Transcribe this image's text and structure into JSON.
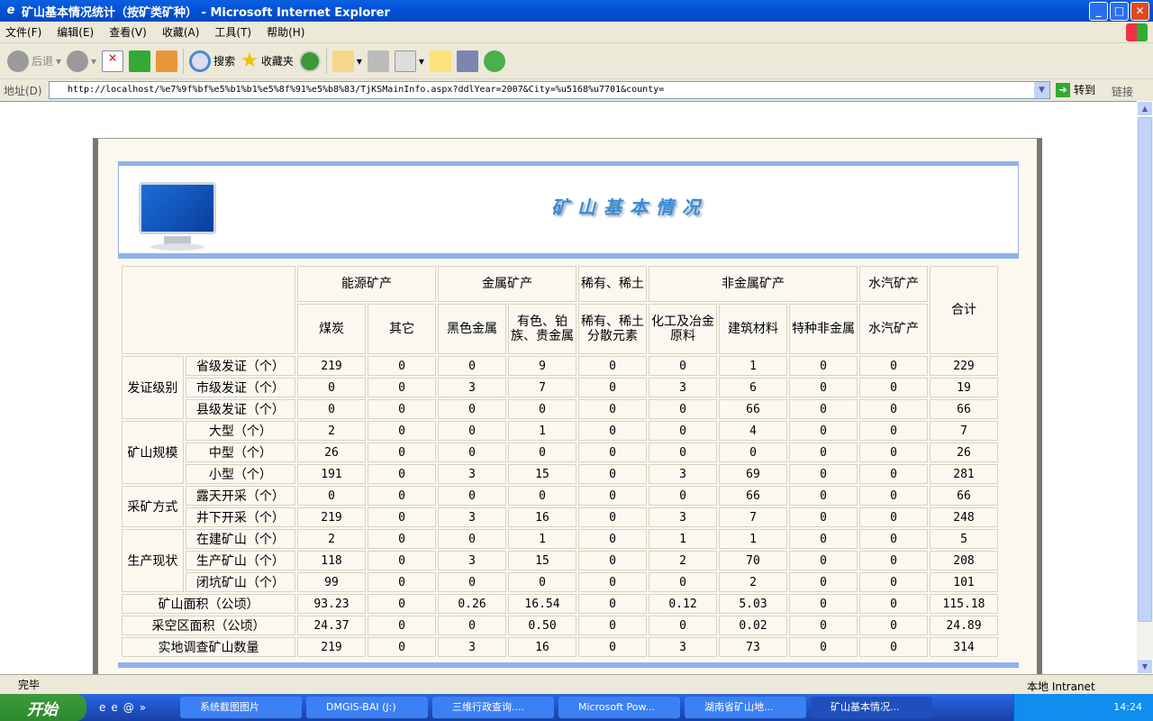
{
  "window": {
    "title": "矿山基本情况统计（按矿类矿种） - Microsoft Internet Explorer",
    "buttons": [
      "_",
      "□",
      "✕"
    ]
  },
  "menu": [
    "文件(F)",
    "编辑(E)",
    "查看(V)",
    "收藏(A)",
    "工具(T)",
    "帮助(H)"
  ],
  "toolbar": {
    "back": "后退",
    "search": "搜索",
    "favorites": "收藏夹"
  },
  "address": {
    "label": "地址(D)",
    "url": "http://localhost/%e7%9f%bf%e5%b1%b1%e5%8f%91%e5%b8%83/TjKSMainInfo.aspx?ddlYear=2007&City=%u5168%u7701&county=",
    "go": "转到",
    "links": "链接"
  },
  "page": {
    "title": "矿山基本情况"
  },
  "table": {
    "groups": [
      {
        "label": "能源矿产",
        "span": 2
      },
      {
        "label": "金属矿产",
        "span": 2
      },
      {
        "label": "稀有、稀土",
        "span": 1
      },
      {
        "label": "非金属矿产",
        "span": 3
      },
      {
        "label": "水汽矿产",
        "span": 1
      }
    ],
    "total_header": "合计",
    "columns": [
      "煤炭",
      "其它",
      "黑色金属",
      "有色、铂族、贵金属",
      "稀有、稀土分散元素",
      "化工及冶金原料",
      "建筑材料",
      "特种非金属",
      "水汽矿产"
    ],
    "row_groups": [
      {
        "label": "发证级别",
        "rows": [
          {
            "label": "省级发证（个）",
            "values": [
              "219",
              "0",
              "0",
              "9",
              "0",
              "0",
              "1",
              "0",
              "0",
              "229"
            ]
          },
          {
            "label": "市级发证（个）",
            "values": [
              "0",
              "0",
              "3",
              "7",
              "0",
              "3",
              "6",
              "0",
              "0",
              "19"
            ]
          },
          {
            "label": "县级发证（个）",
            "values": [
              "0",
              "0",
              "0",
              "0",
              "0",
              "0",
              "66",
              "0",
              "0",
              "66"
            ]
          }
        ]
      },
      {
        "label": "矿山规模",
        "rows": [
          {
            "label": "大型（个）",
            "values": [
              "2",
              "0",
              "0",
              "1",
              "0",
              "0",
              "4",
              "0",
              "0",
              "7"
            ]
          },
          {
            "label": "中型（个）",
            "values": [
              "26",
              "0",
              "0",
              "0",
              "0",
              "0",
              "0",
              "0",
              "0",
              "26"
            ]
          },
          {
            "label": "小型（个）",
            "values": [
              "191",
              "0",
              "3",
              "15",
              "0",
              "3",
              "69",
              "0",
              "0",
              "281"
            ]
          }
        ]
      },
      {
        "label": "采矿方式",
        "rows": [
          {
            "label": "露天开采（个）",
            "values": [
              "0",
              "0",
              "0",
              "0",
              "0",
              "0",
              "66",
              "0",
              "0",
              "66"
            ]
          },
          {
            "label": "井下开采（个）",
            "values": [
              "219",
              "0",
              "3",
              "16",
              "0",
              "3",
              "7",
              "0",
              "0",
              "248"
            ]
          }
        ]
      },
      {
        "label": "生产现状",
        "rows": [
          {
            "label": "在建矿山（个）",
            "values": [
              "2",
              "0",
              "0",
              "1",
              "0",
              "1",
              "1",
              "0",
              "0",
              "5"
            ]
          },
          {
            "label": "生产矿山（个）",
            "values": [
              "118",
              "0",
              "3",
              "15",
              "0",
              "2",
              "70",
              "0",
              "0",
              "208"
            ]
          },
          {
            "label": "闭坑矿山（个）",
            "values": [
              "99",
              "0",
              "0",
              "0",
              "0",
              "0",
              "2",
              "0",
              "0",
              "101"
            ]
          }
        ]
      }
    ],
    "summary_rows": [
      {
        "label": "矿山面积（公顷）",
        "values": [
          "93.23",
          "0",
          "0.26",
          "16.54",
          "0",
          "0.12",
          "5.03",
          "0",
          "0",
          "115.18"
        ]
      },
      {
        "label": "采空区面积（公顷）",
        "values": [
          "24.37",
          "0",
          "0",
          "0.50",
          "0",
          "0",
          "0.02",
          "0",
          "0",
          "24.89"
        ]
      },
      {
        "label": "实地调查矿山数量",
        "values": [
          "219",
          "0",
          "3",
          "16",
          "0",
          "3",
          "73",
          "0",
          "0",
          "314"
        ]
      }
    ]
  },
  "status": {
    "text": "完毕",
    "zone": "本地 Intranet"
  },
  "taskbar": {
    "start": "开始",
    "tasks": [
      "系统截图图片",
      "DMGIS-BAI (J:)",
      "三维行政查询....",
      "Microsoft Pow...",
      "湖南省矿山地...",
      "矿山基本情况..."
    ],
    "active": 5,
    "clock": "14:24"
  }
}
